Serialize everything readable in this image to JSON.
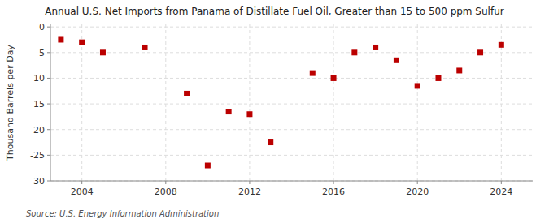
{
  "chart_data": {
    "type": "scatter",
    "title": "Annual U.S. Net Imports from Panama of Distillate Fuel Oil, Greater than 15 to 500 ppm Sulfur",
    "ylabel": "Thousand Barrels per Day",
    "source": "Source: U.S. Energy Information Administration",
    "x": [
      2003,
      2004,
      2005,
      2007,
      2009,
      2010,
      2011,
      2012,
      2013,
      2015,
      2016,
      2017,
      2018,
      2019,
      2020,
      2021,
      2022,
      2023,
      2024
    ],
    "values": [
      -2.5,
      -3.0,
      -5.0,
      -4.0,
      -13.0,
      -27.0,
      -16.5,
      -17.0,
      -22.5,
      -9.0,
      -10.0,
      -5.0,
      -4.0,
      -6.5,
      -11.5,
      -10.0,
      -8.5,
      -5.0,
      -3.5
    ],
    "color": "#bb0000",
    "marker": "square",
    "xlim": [
      2002.5,
      2025.5
    ],
    "ylim": [
      -30,
      0.5
    ],
    "xticks": [
      2004,
      2008,
      2012,
      2016,
      2020,
      2024
    ],
    "yticks": [
      0,
      -5,
      -10,
      -15,
      -20,
      -25,
      -30
    ],
    "grid": true
  }
}
